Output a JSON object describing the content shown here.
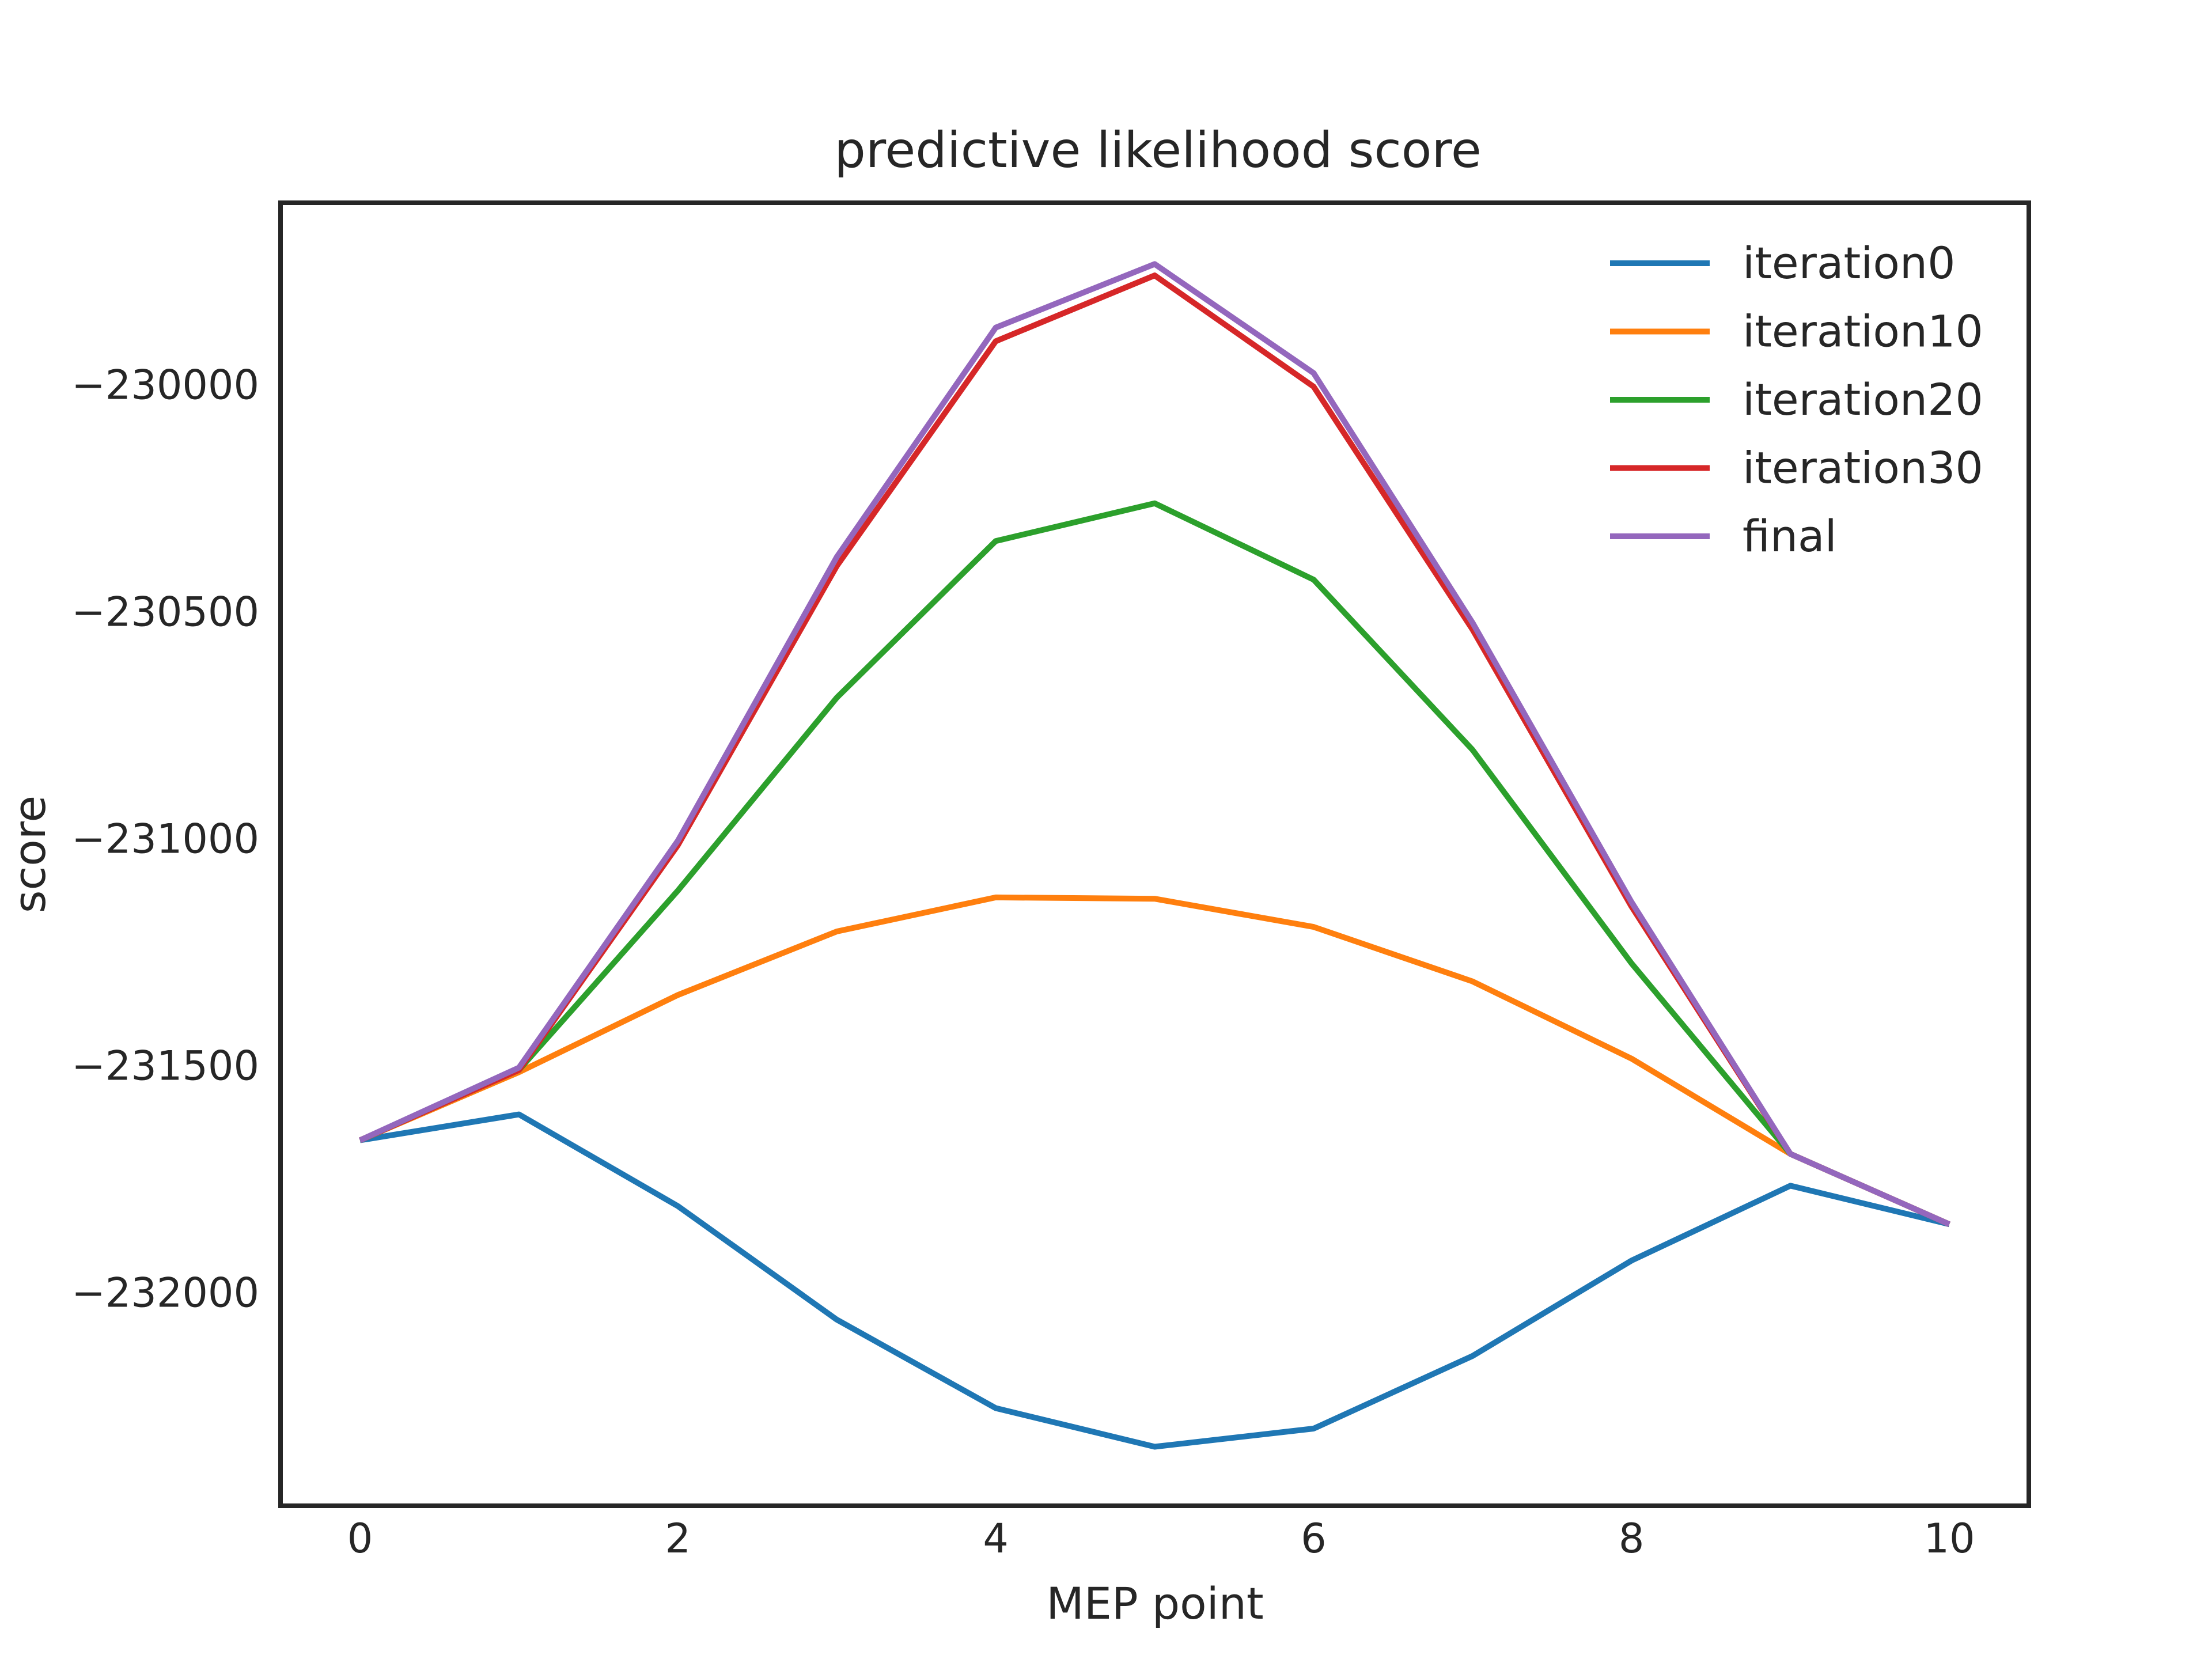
{
  "chart_data": {
    "type": "line",
    "title": "predictive likelihood score",
    "xlabel": "MEP point",
    "ylabel": "score",
    "xlim": [
      -0.5,
      10.5
    ],
    "ylim": [
      -232470,
      -229600
    ],
    "x_ticks": [
      0,
      2,
      4,
      6,
      8,
      10
    ],
    "y_ticks": [
      -230000,
      -230500,
      -231000,
      -231500,
      -232000
    ],
    "y_tick_labels": [
      "−230000",
      "−230500",
      "−231000",
      "−231500",
      "−232000"
    ],
    "grid": false,
    "legend_position": "top-right",
    "x": [
      0,
      1,
      2,
      3,
      4,
      5,
      6,
      7,
      8,
      9,
      10
    ],
    "series": [
      {
        "name": "iteration0",
        "color": "#1f77b4",
        "values": [
          -231665,
          -231608,
          -231810,
          -232060,
          -232255,
          -232340,
          -232300,
          -232140,
          -231930,
          -231765,
          -231850
        ]
      },
      {
        "name": "iteration10",
        "color": "#ff7f0e",
        "values": [
          -231665,
          -231515,
          -231345,
          -231205,
          -231130,
          -231133,
          -231195,
          -231315,
          -231485,
          -231695,
          -231850
        ]
      },
      {
        "name": "iteration20",
        "color": "#2ca02c",
        "values": [
          -231665,
          -231510,
          -231115,
          -230690,
          -230345,
          -230262,
          -230430,
          -230805,
          -231275,
          -231695,
          -231850
        ]
      },
      {
        "name": "iteration30",
        "color": "#d62728",
        "values": [
          -231665,
          -231510,
          -231015,
          -230400,
          -229905,
          -229760,
          -230005,
          -230540,
          -231150,
          -231695,
          -231850
        ]
      },
      {
        "name": "final",
        "color": "#9467bd",
        "values": [
          -231665,
          -231505,
          -231005,
          -230380,
          -229875,
          -229735,
          -229975,
          -230525,
          -231140,
          -231695,
          -231850
        ]
      }
    ]
  }
}
